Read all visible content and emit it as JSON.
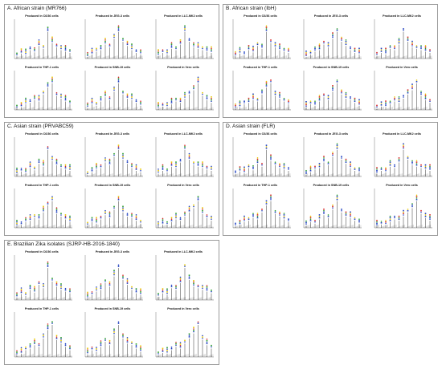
{
  "figure": {
    "panels": [
      {
        "title": "A. African strain (MR766)",
        "cells": [
          "Produced in C6/36 cells",
          "Produced in JEG-3 cells",
          "Produced in LLC-MK2 cells",
          "Produced in THP-1 cells",
          "Produced in SNB-19 cells",
          "Produced in Vero cells"
        ]
      },
      {
        "title": "B. African strain (IbH)",
        "cells": [
          "Produced in C6/36 cells",
          "Produced in JEG-3 cells",
          "Produced in LLC-MK2 cells",
          "Produced in THP-1 cells",
          "Produced in SNB-19 cells",
          "Produced in Vero cells"
        ]
      },
      {
        "title": "C. Asian strain (PRVABC59)",
        "cells": [
          "Produced in C6/36 cells",
          "Produced in JEG-3 cells",
          "Produced in LLC-MK2 cells",
          "Produced in THP-1 cells",
          "Produced in SNB-19 cells",
          "Produced in Vero cells"
        ]
      },
      {
        "title": "D. Asian strain (FLR)",
        "cells": [
          "Produced in C6/36 cells",
          "Produced in JEG-3 cells",
          "Produced in LLC-MK2 cells",
          "Produced in THP-1 cells",
          "Produced in SNB-19 cells",
          "Produced in Vero cells"
        ]
      },
      {
        "title": "E. Brazilian Zika isolates (SJRP-HB-2016-1840)",
        "cells": [
          "Produced in C6/36 cells",
          "Produced in JEG-3 cells",
          "Produced in LLC-MK2 cells",
          "Produced in THP-1 cells",
          "Produced in SNB-19 cells",
          "Produced in Vero cells"
        ]
      }
    ],
    "colors": {
      "peak": "#333333",
      "glycan_blue": "#1f3fbf",
      "glycan_green": "#2aa02a",
      "glycan_red": "#d62728",
      "glycan_yellow": "#e8c800",
      "frame": "#9a9a9a"
    }
  },
  "chart_data": [
    {
      "type": "line",
      "title": "Produced in C6/36 cells",
      "xlim": [
        1500,
        4500
      ],
      "series": [
        {
          "values": [
            0.08,
            0.18,
            0.12,
            0.3,
            0.22,
            0.45,
            0.35,
            0.95,
            0.55,
            0.4,
            0.3,
            0.25,
            0.2
          ]
        }
      ]
    },
    {
      "type": "line",
      "title": "Produced in JEG-3 cells",
      "xlim": [
        1500,
        4500
      ],
      "series": [
        {
          "values": [
            0.05,
            0.15,
            0.25,
            0.3,
            0.5,
            0.4,
            0.7,
            0.95,
            0.6,
            0.45,
            0.3,
            0.2,
            0.15
          ]
        }
      ]
    },
    {
      "type": "line",
      "title": "Produced in LLC-MK2 cells",
      "xlim": [
        1500,
        4500
      ],
      "series": [
        {
          "values": [
            0.1,
            0.2,
            0.15,
            0.35,
            0.3,
            0.5,
            0.95,
            0.6,
            0.4,
            0.35,
            0.3,
            0.25,
            0.2
          ]
        }
      ]
    },
    {
      "type": "line",
      "title": "Produced in THP-1 cells",
      "xlim": [
        1500,
        4500
      ],
      "series": [
        {
          "values": [
            0.05,
            0.1,
            0.2,
            0.25,
            0.35,
            0.3,
            0.55,
            0.8,
            0.95,
            0.5,
            0.4,
            0.3,
            0.2
          ]
        }
      ]
    },
    {
      "type": "line",
      "title": "Produced in SNB-19 cells",
      "xlim": [
        1500,
        4500
      ],
      "series": [
        {
          "values": [
            0.08,
            0.2,
            0.15,
            0.3,
            0.45,
            0.35,
            0.65,
            0.95,
            0.55,
            0.4,
            0.35,
            0.25,
            0.15
          ]
        }
      ]
    },
    {
      "type": "line",
      "title": "Produced in Vero cells",
      "xlim": [
        1500,
        4500
      ],
      "series": [
        {
          "values": [
            0.05,
            0.12,
            0.1,
            0.2,
            0.3,
            0.25,
            0.4,
            0.55,
            0.7,
            0.95,
            0.5,
            0.35,
            0.25
          ]
        }
      ]
    }
  ]
}
